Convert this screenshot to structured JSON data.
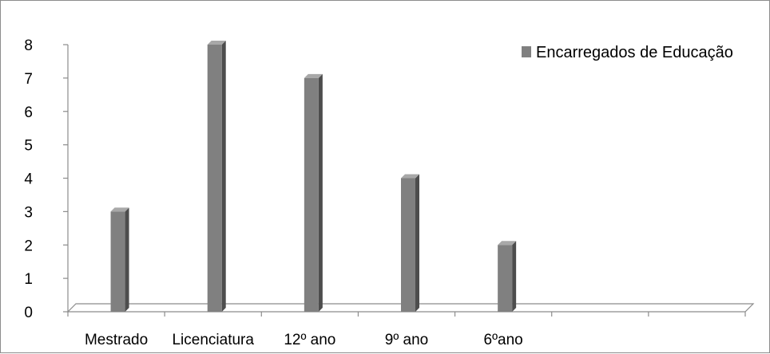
{
  "chart_data": {
    "type": "bar",
    "categories": [
      "Mestrado",
      "Licenciatura",
      "12º ano",
      "9º ano",
      "6ºano",
      "",
      ""
    ],
    "series": [
      {
        "name": "Encarregados de Educação",
        "values": [
          3,
          8,
          7,
          4,
          2,
          null,
          null
        ]
      }
    ],
    "yticks": [
      "0",
      "1",
      "2",
      "3",
      "4",
      "5",
      "6",
      "7",
      "8"
    ],
    "ylim": [
      0,
      8
    ],
    "title": "",
    "xlabel": "",
    "ylabel": "",
    "grid": false,
    "three_d": true,
    "legend_position": "top-right",
    "colors": {
      "bar_front": "#808080",
      "bar_side": "#4d4d4d",
      "bar_top": "#a8a8a8",
      "axis": "#8c8c8c",
      "frame": "#8c8c8c"
    }
  }
}
